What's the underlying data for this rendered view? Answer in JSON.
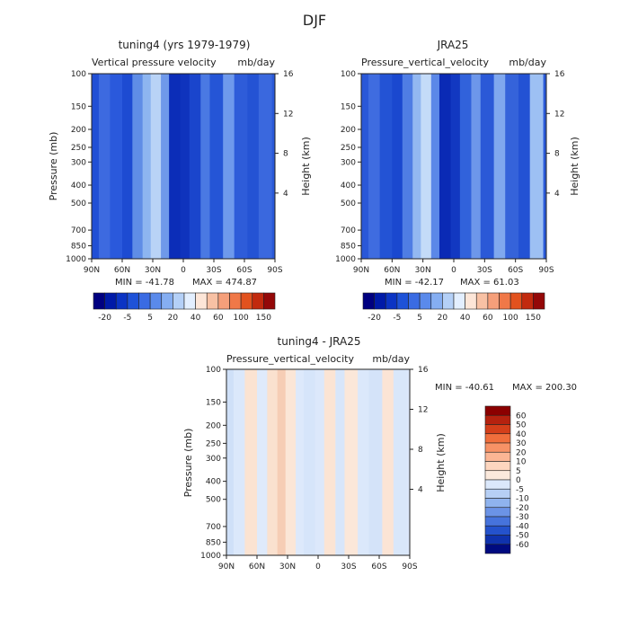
{
  "page": {
    "title": "DJF"
  },
  "chart_data": [
    {
      "type": "heatmap",
      "title": "tuning4 (yrs 1979-1979)",
      "subtitle_left": "Vertical pressure velocity",
      "subtitle_right": "mb/day",
      "ylabel": "Pressure (mb)",
      "ylabel_right": "Height (km)",
      "x_ticks": [
        "90N",
        "60N",
        "30N",
        "0",
        "30S",
        "60S",
        "90S"
      ],
      "y_ticks": [
        "100",
        "150",
        "200",
        "250",
        "300",
        "400",
        "500",
        "700",
        "850",
        "1000"
      ],
      "y2_ticks": [
        "16",
        "12",
        "8",
        "4"
      ],
      "min_text": "MIN = -41.78",
      "max_text": "MAX = 474.87",
      "colorbar_labels": [
        "-20",
        "-5",
        "5",
        "20",
        "40",
        "60",
        "100",
        "150"
      ],
      "colorbar_colors": [
        "#000080",
        "#001aa8",
        "#0b34c4",
        "#1e52d8",
        "#3a6be3",
        "#5a8aeb",
        "#85aef2",
        "#b4d0f7",
        "#e3efff",
        "#fde6d8",
        "#f8c1a4",
        "#f59f7a",
        "#f07848",
        "#e2521e",
        "#c22a0e",
        "#940808"
      ],
      "bands": [
        {
          "lat": -88,
          "color": "#214fd5"
        },
        {
          "lat": -78,
          "color": "#3d6ae0"
        },
        {
          "lat": -66,
          "color": "#2a59dc"
        },
        {
          "lat": -55,
          "color": "#1d4bd2"
        },
        {
          "lat": -44,
          "color": "#5f8de6"
        },
        {
          "lat": -35,
          "color": "#8db5f0"
        },
        {
          "lat": -26,
          "color": "#b9d3f6"
        },
        {
          "lat": -17,
          "color": "#6f99ea"
        },
        {
          "lat": -8,
          "color": "#0b2db8"
        },
        {
          "lat": 2,
          "color": "#0f33bd"
        },
        {
          "lat": 12,
          "color": "#1a45cc"
        },
        {
          "lat": 22,
          "color": "#4a79e3"
        },
        {
          "lat": 32,
          "color": "#2555d6"
        },
        {
          "lat": 44,
          "color": "#6e99ec"
        },
        {
          "lat": 56,
          "color": "#2e5cd9"
        },
        {
          "lat": 68,
          "color": "#2453d4"
        },
        {
          "lat": 80,
          "color": "#3a68de"
        }
      ]
    },
    {
      "type": "heatmap",
      "title": "JRA25",
      "subtitle_left": "Pressure_vertical_velocity",
      "subtitle_right": "mb/day",
      "ylabel": "",
      "ylabel_right": "Height (km)",
      "x_ticks": [
        "90N",
        "60N",
        "30N",
        "0",
        "30S",
        "60S",
        "90S"
      ],
      "y_ticks": [
        "100",
        "150",
        "200",
        "250",
        "300",
        "400",
        "500",
        "700",
        "850",
        "1000"
      ],
      "y2_ticks": [
        "16",
        "12",
        "8",
        "4"
      ],
      "min_text": "MIN = -42.17",
      "max_text": "MAX = 61.03",
      "colorbar_labels": [
        "-20",
        "-5",
        "5",
        "20",
        "40",
        "60",
        "100",
        "150"
      ],
      "colorbar_colors": [
        "#000080",
        "#001aa8",
        "#0b34c4",
        "#1e52d8",
        "#3a6be3",
        "#5a8aeb",
        "#85aef2",
        "#b4d0f7",
        "#e3efff",
        "#fde6d8",
        "#f8c1a4",
        "#f59f7a",
        "#f07848",
        "#e2521e",
        "#c22a0e",
        "#940808"
      ],
      "bands": [
        {
          "lat": -88,
          "color": "#2a58d8"
        },
        {
          "lat": -78,
          "color": "#3f6ce0"
        },
        {
          "lat": -66,
          "color": "#2353d5"
        },
        {
          "lat": -55,
          "color": "#1a48cf"
        },
        {
          "lat": -44,
          "color": "#4f7de4"
        },
        {
          "lat": -35,
          "color": "#93b8f1"
        },
        {
          "lat": -26,
          "color": "#c4dbf8"
        },
        {
          "lat": -17,
          "color": "#5b88e8"
        },
        {
          "lat": -8,
          "color": "#0a2ab5"
        },
        {
          "lat": 2,
          "color": "#1238c1"
        },
        {
          "lat": 12,
          "color": "#3162db"
        },
        {
          "lat": 22,
          "color": "#6d97ea"
        },
        {
          "lat": 32,
          "color": "#2b59d7"
        },
        {
          "lat": 44,
          "color": "#80a8ee"
        },
        {
          "lat": 56,
          "color": "#3563da"
        },
        {
          "lat": 68,
          "color": "#2352d4"
        },
        {
          "lat": 80,
          "color": "#9dc0f3"
        }
      ]
    },
    {
      "type": "heatmap",
      "title": "tuning4 - JRA25",
      "subtitle_left": "Pressure_vertical_velocity",
      "subtitle_right": "mb/day",
      "ylabel": "Pressure (mb)",
      "ylabel_right": "Height (km)",
      "x_ticks": [
        "90N",
        "60N",
        "30N",
        "0",
        "30S",
        "60S",
        "90S"
      ],
      "y_ticks": [
        "100",
        "150",
        "200",
        "250",
        "300",
        "400",
        "500",
        "700",
        "850",
        "1000"
      ],
      "y2_ticks": [
        "16",
        "12",
        "8",
        "4"
      ],
      "min_text": "MIN = -40.61",
      "max_text": "MAX = 200.30",
      "colorbar_labels": [
        "60",
        "50",
        "40",
        "30",
        "20",
        "10",
        "5",
        "0",
        "-5",
        "-10",
        "-20",
        "-30",
        "-40",
        "-50",
        "-60"
      ],
      "colorbar_colors": [
        "#8b0000",
        "#b5220f",
        "#d43f1a",
        "#f06e3c",
        "#f79266",
        "#fbb594",
        "#fdd6bf",
        "#fbe9dc",
        "#dbe8fb",
        "#b6cff5",
        "#8fb3ee",
        "#6b93e6",
        "#4673dc",
        "#2452cc",
        "#0f32ad",
        "#000a80"
      ],
      "bands": [
        {
          "lat": -88,
          "color": "#cfe0f8"
        },
        {
          "lat": -78,
          "color": "#dbe8fb"
        },
        {
          "lat": -66,
          "color": "#fbe3d2"
        },
        {
          "lat": -55,
          "color": "#dfeafb"
        },
        {
          "lat": -44,
          "color": "#fae1cf"
        },
        {
          "lat": -35,
          "color": "#f6cdb5"
        },
        {
          "lat": -26,
          "color": "#fbe6d7"
        },
        {
          "lat": -17,
          "color": "#dde9fb"
        },
        {
          "lat": -8,
          "color": "#d6e5fa"
        },
        {
          "lat": 2,
          "color": "#dce8fb"
        },
        {
          "lat": 12,
          "color": "#fbe4d4"
        },
        {
          "lat": 22,
          "color": "#d8e6fa"
        },
        {
          "lat": 32,
          "color": "#fbe7d9"
        },
        {
          "lat": 44,
          "color": "#dbe8fb"
        },
        {
          "lat": 56,
          "color": "#d4e3f9"
        },
        {
          "lat": 68,
          "color": "#fbe4d5"
        },
        {
          "lat": 80,
          "color": "#d9e7fa"
        }
      ]
    }
  ]
}
